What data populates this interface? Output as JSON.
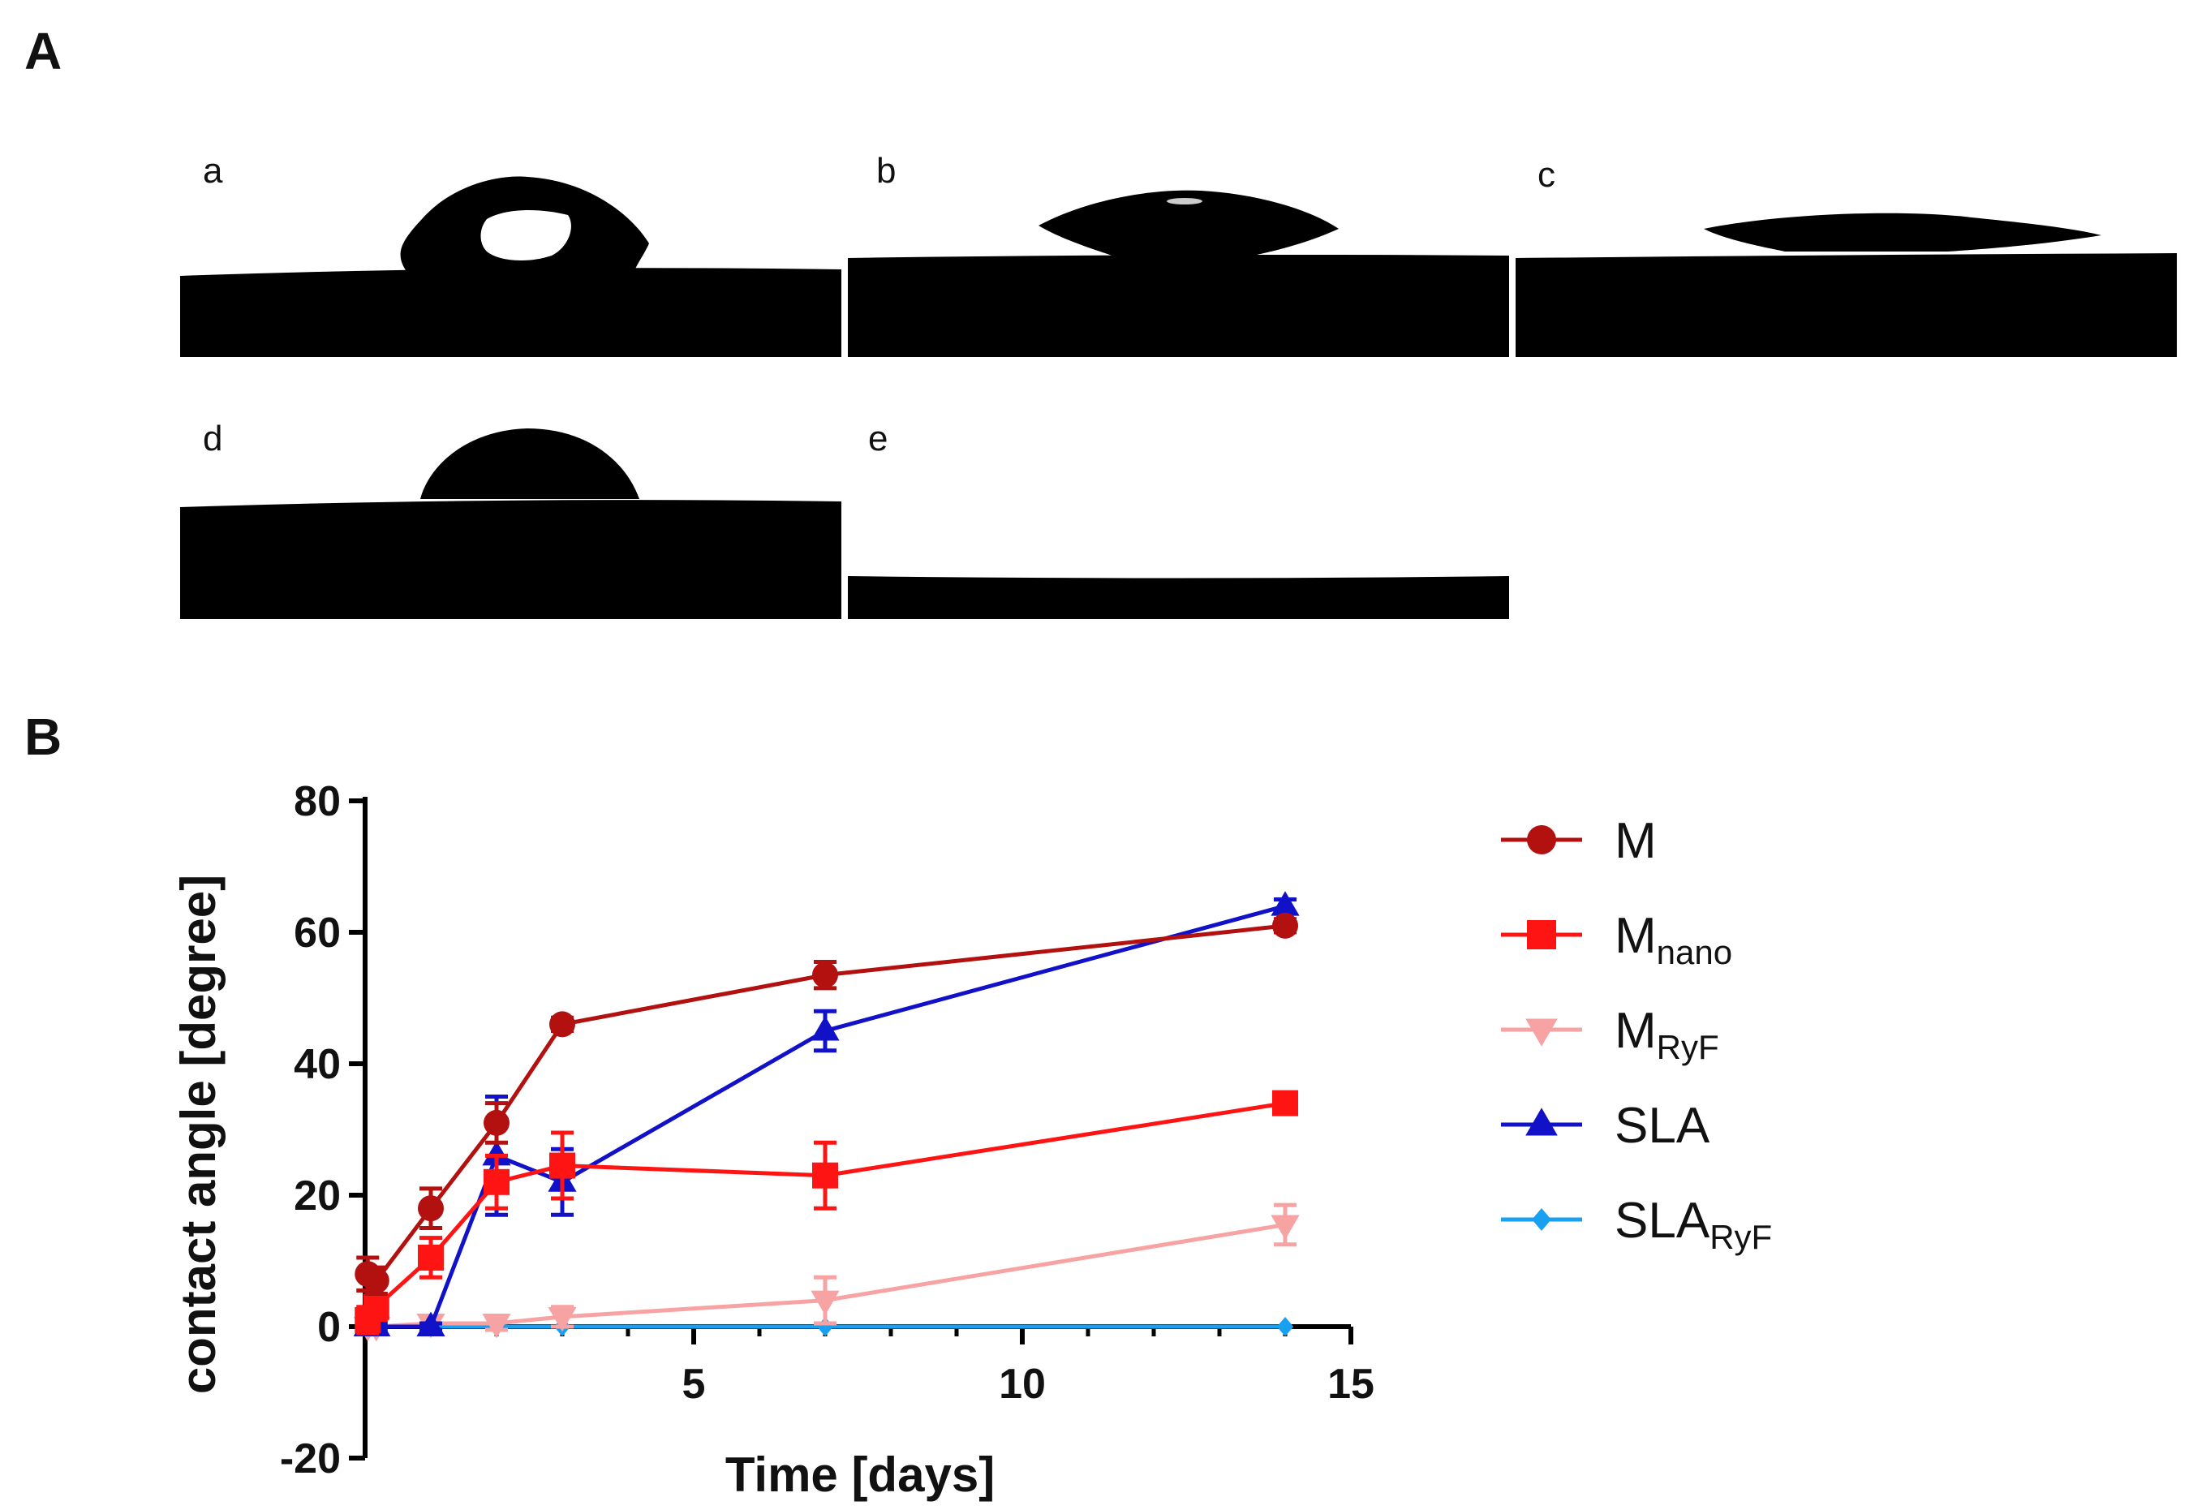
{
  "panel_a": {
    "letter": "A",
    "images": [
      {
        "label": "a",
        "drop": "cap-high-bubble"
      },
      {
        "label": "b",
        "drop": "lens"
      },
      {
        "label": "c",
        "drop": "thin-lens"
      },
      {
        "label": "d",
        "drop": "dome"
      },
      {
        "label": "e",
        "drop": "none"
      }
    ]
  },
  "panel_b": {
    "letter": "B"
  },
  "chart_data": {
    "type": "line",
    "xlabel": "Time [days]",
    "ylabel": "contact angle [degree]",
    "xlim": [
      0,
      15
    ],
    "ylim": [
      -20,
      80
    ],
    "xticks": [
      5,
      10,
      15
    ],
    "yticks": [
      -20,
      0,
      20,
      40,
      60,
      80
    ],
    "grid": false,
    "legend_position": "right",
    "series": [
      {
        "name": "M",
        "name_main": "M",
        "name_sub": "",
        "color": "#b31010",
        "marker": "circle",
        "x": [
          0.04,
          0.17,
          1,
          2,
          3,
          7,
          14
        ],
        "y": [
          8,
          7,
          18,
          31,
          46,
          53.5,
          61
        ],
        "err": [
          2.5,
          2,
          3,
          3,
          1,
          2,
          1
        ]
      },
      {
        "name": "Mnano",
        "name_main": "M",
        "name_sub": "nano",
        "color": "#ff1414",
        "marker": "square",
        "x": [
          0.04,
          0.17,
          1,
          2,
          3,
          7,
          14
        ],
        "y": [
          1,
          3,
          10.5,
          22,
          24.5,
          23,
          34
        ],
        "err": [
          2,
          2,
          3,
          4,
          5,
          5,
          1
        ]
      },
      {
        "name": "MRyF",
        "name_main": "M",
        "name_sub": "RyF",
        "color": "#f8a3a3",
        "marker": "triangle-down",
        "x": [
          0.04,
          0.17,
          1,
          2,
          3,
          7,
          14
        ],
        "y": [
          0,
          0,
          0.5,
          0.5,
          1.5,
          4,
          15.5
        ],
        "err": [
          0.5,
          0.5,
          1,
          1,
          1.5,
          3.5,
          3
        ]
      },
      {
        "name": "SLA",
        "name_main": "SLA",
        "name_sub": "",
        "color": "#1111c8",
        "marker": "triangle-up",
        "x": [
          0.04,
          0.17,
          1,
          2,
          3,
          7,
          14
        ],
        "y": [
          0,
          0,
          0,
          26,
          22,
          45,
          64
        ],
        "err": [
          0.5,
          0.5,
          0.5,
          9,
          5,
          3,
          1
        ]
      },
      {
        "name": "SLARyF",
        "name_main": "SLA",
        "name_sub": "RyF",
        "color": "#1aa0f0",
        "marker": "diamond",
        "x": [
          0.04,
          0.17,
          1,
          2,
          3,
          7,
          14
        ],
        "y": [
          0,
          0,
          0,
          0,
          0,
          0,
          0
        ],
        "err": [
          0,
          0,
          0,
          0,
          0,
          0,
          0
        ]
      }
    ]
  }
}
